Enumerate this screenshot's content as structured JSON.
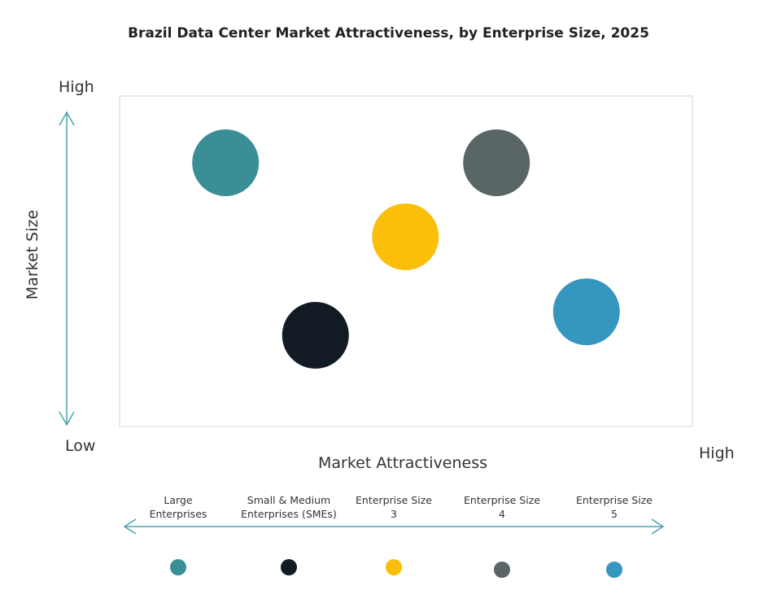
{
  "chart_data": {
    "type": "scatter",
    "title": "Brazil Data Center Market Attractiveness,  by Enterprise Size, 2025",
    "xlabel": "Market Attractiveness",
    "ylabel": "Market Size",
    "x_low_label": "",
    "x_high_label": "High",
    "y_high_label": "High",
    "y_low_label": "Low",
    "xlim": [
      0,
      100
    ],
    "ylim": [
      0,
      100
    ],
    "grid": false,
    "legend_position": "bottom",
    "points": [
      {
        "name": "Large Enterprises",
        "line1": "Large",
        "line2": "Enterprises",
        "x": 18.5,
        "y": 79.8,
        "color": "#3a8f96"
      },
      {
        "name": "Small & Medium Enterprises (SMEs)",
        "line1": "Small & Medium",
        "line2": "Enterprises (SMEs)",
        "x": 34.2,
        "y": 27.6,
        "color": "#121a24"
      },
      {
        "name": "Enterprise Size 3",
        "line1": "Enterprise Size",
        "line2": "3",
        "x": 49.9,
        "y": 57.4,
        "color": "#fbbf0a"
      },
      {
        "name": "Enterprise Size 4",
        "line1": "Enterprise Size",
        "line2": "4",
        "x": 65.8,
        "y": 79.8,
        "color": "#5a6566"
      },
      {
        "name": "Enterprise Size 5",
        "line1": "Enterprise Size",
        "line2": "5",
        "x": 81.5,
        "y": 34.7,
        "color": "#3597bf"
      }
    ],
    "axis_arrow_color": "#4aa3b0"
  }
}
